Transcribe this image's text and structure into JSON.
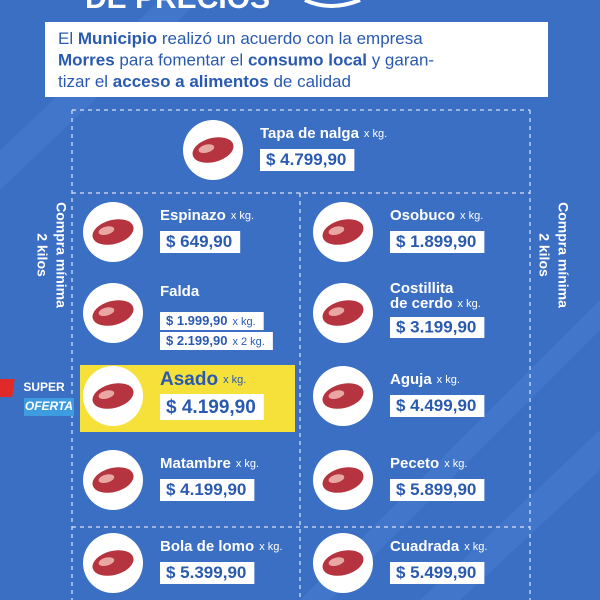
{
  "header": {
    "title": "DE PRECIOS"
  },
  "intro": {
    "lines": [
      [
        {
          "text": "El ",
          "bold": false
        },
        {
          "text": "Municipio",
          "bold": true
        },
        {
          "text": " realizó un acuerdo con la empresa",
          "bold": false
        }
      ],
      [
        {
          "text": "Morres",
          "bold": true
        },
        {
          "text": " para fomentar el ",
          "bold": false
        },
        {
          "text": "consumo local",
          "bold": true
        },
        {
          "text": " y garan-",
          "bold": false
        }
      ],
      [
        {
          "text": "tizar el ",
          "bold": false
        },
        {
          "text": "acceso a alimentos",
          "bold": true
        },
        {
          "text": " de calidad",
          "bold": false
        }
      ]
    ]
  },
  "side_note": {
    "lines": [
      "Compra mínima",
      "2 kilos"
    ]
  },
  "items": [
    {
      "name": "Tapa de nalga",
      "unit": "x kg.",
      "price": "$ 4.799,90"
    },
    {
      "name": "Espinazo",
      "unit": "x kg.",
      "price": "$ 649,90"
    },
    {
      "name": "Osobuco",
      "unit": "x kg.",
      "price": "$ 1.899,90"
    },
    {
      "name": "Falda",
      "prices": [
        {
          "price": "$ 1.999,90",
          "unit": "x kg."
        },
        {
          "price": "$ 2.199,90",
          "unit": "x 2 kg."
        }
      ]
    },
    {
      "name_lines": [
        "Costillita",
        "de cerdo"
      ],
      "unit": "x kg.",
      "price": "$ 3.199,90"
    },
    {
      "name": "Asado",
      "unit": "x kg.",
      "price": "$ 4.199,90",
      "badge": [
        "SUPER",
        "OFERTA"
      ],
      "highlight": true
    },
    {
      "name": "Aguja",
      "unit": "x kg.",
      "price": "$ 4.499,90"
    },
    {
      "name": "Matambre",
      "unit": "x kg.",
      "price": "$ 4.199,90"
    },
    {
      "name": "Peceto",
      "unit": "x kg.",
      "price": "$ 5.899,90"
    },
    {
      "name": "Bola de lomo",
      "unit": "x kg.",
      "price": "$ 5.399,90"
    },
    {
      "name": "Cuadrada",
      "unit": "x kg.",
      "price": "$ 5.499,90"
    }
  ]
}
